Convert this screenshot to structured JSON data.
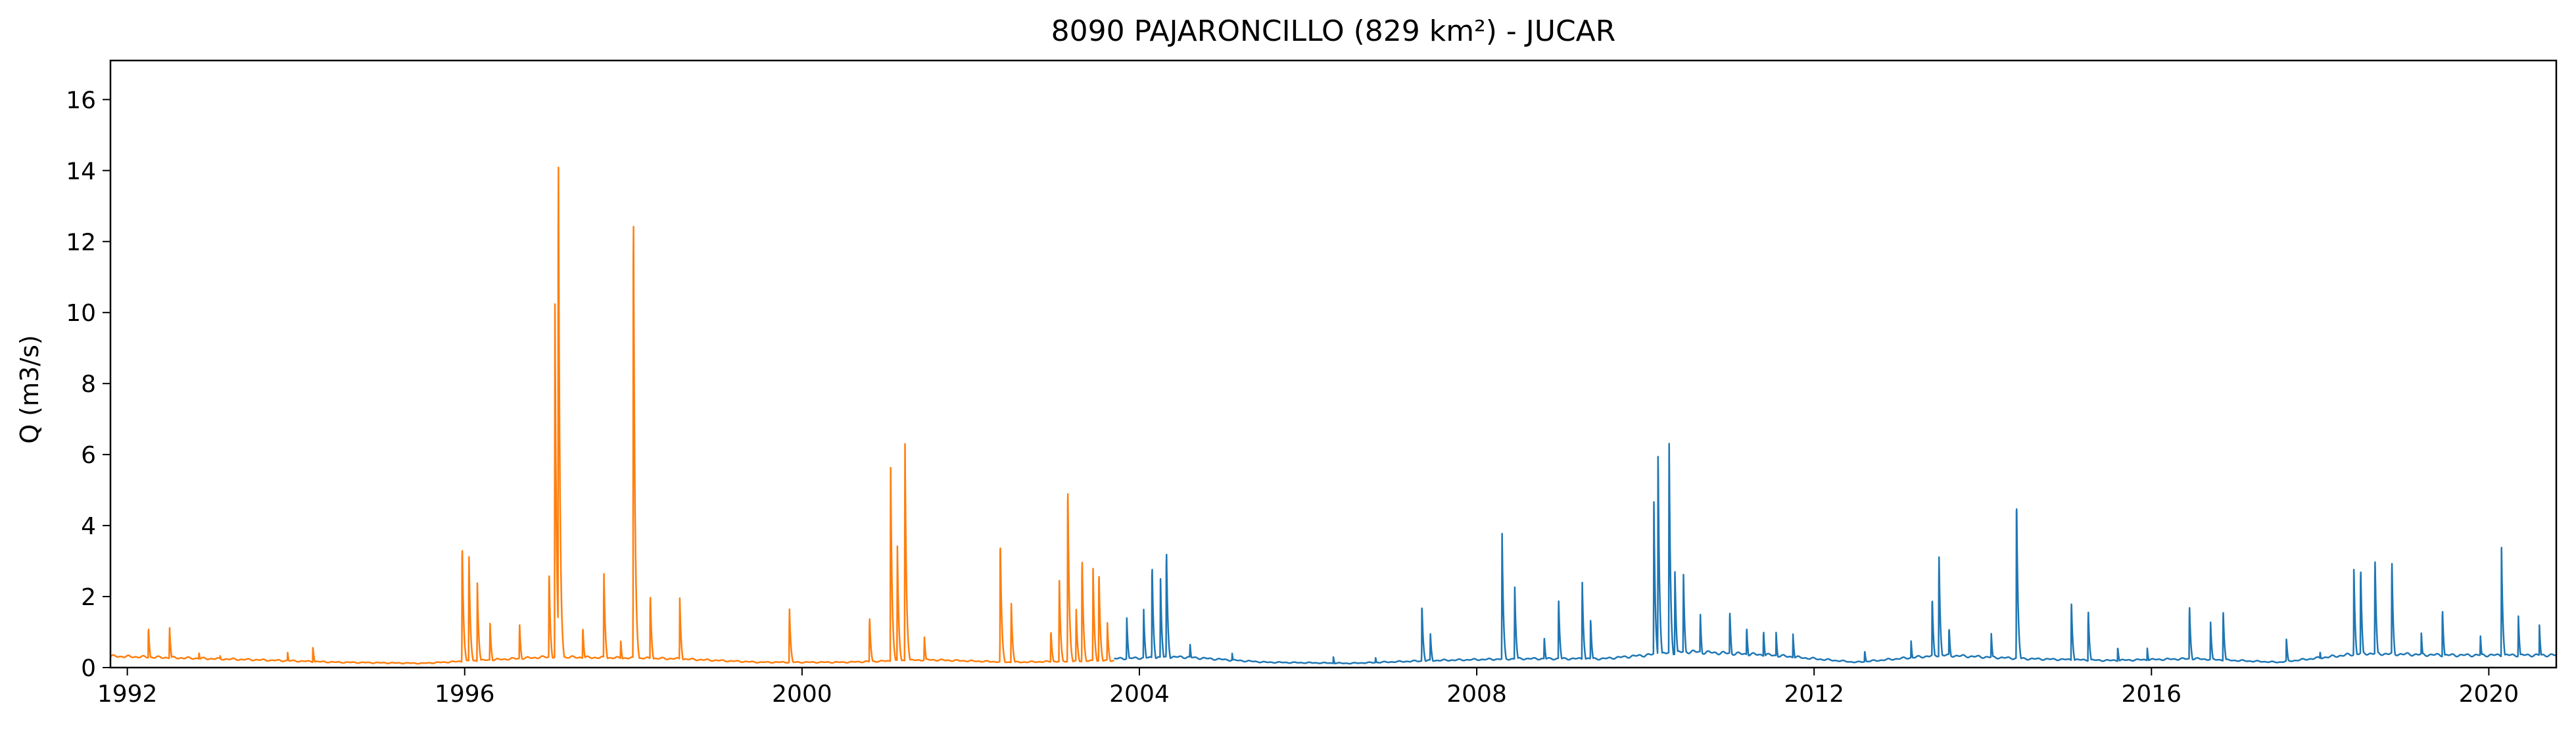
{
  "chart_data": {
    "type": "line",
    "title": "8090 PAJARONCILLO (829 km²) - JUCAR",
    "xlabel": "",
    "ylabel": "Q (m3/s)",
    "xlim": [
      1991.8,
      2020.8
    ],
    "ylim": [
      0,
      17.1
    ],
    "x_ticks": [
      1992,
      1996,
      2000,
      2004,
      2008,
      2012,
      2016,
      2020
    ],
    "x_tick_labels": [
      "1992",
      "1996",
      "2000",
      "2004",
      "2008",
      "2012",
      "2016",
      "2020"
    ],
    "y_ticks": [
      0,
      2,
      4,
      6,
      8,
      10,
      12,
      14,
      16
    ],
    "y_tick_labels": [
      "0",
      "2",
      "4",
      "6",
      "8",
      "10",
      "12",
      "14",
      "16"
    ],
    "grid": false,
    "legend": "none",
    "series": [
      {
        "color": "#ff7f0e",
        "x_range": [
          1991.8,
          2003.7
        ],
        "baseline_by_year": [
          [
            1991.8,
            0.32
          ],
          [
            1992.5,
            0.28
          ],
          [
            1993.5,
            0.22
          ],
          [
            1994.5,
            0.15
          ],
          [
            1995.5,
            0.12
          ],
          [
            1996.0,
            0.18
          ],
          [
            1997.0,
            0.3
          ],
          [
            1998.5,
            0.25
          ],
          [
            1999.5,
            0.15
          ],
          [
            2000.5,
            0.15
          ],
          [
            2001.5,
            0.22
          ],
          [
            2002.5,
            0.15
          ],
          [
            2003.7,
            0.2
          ]
        ],
        "peaks": [
          [
            1992.25,
            1.2
          ],
          [
            1992.5,
            1.2
          ],
          [
            1992.85,
            0.45
          ],
          [
            1993.1,
            0.35
          ],
          [
            1993.9,
            0.45
          ],
          [
            1994.2,
            0.6
          ],
          [
            1995.97,
            3.7
          ],
          [
            1996.05,
            3.4
          ],
          [
            1996.15,
            2.4
          ],
          [
            1996.3,
            1.3
          ],
          [
            1996.65,
            1.3
          ],
          [
            1997.0,
            2.9
          ],
          [
            1997.07,
            10.6
          ],
          [
            1997.11,
            15.5
          ],
          [
            1997.4,
            1.2
          ],
          [
            1997.65,
            2.85
          ],
          [
            1997.85,
            0.8
          ],
          [
            1998.0,
            13.9
          ],
          [
            1998.2,
            2.2
          ],
          [
            1998.55,
            2.0
          ],
          [
            1999.85,
            1.75
          ],
          [
            2000.8,
            1.5
          ],
          [
            2001.05,
            5.95
          ],
          [
            2001.13,
            3.5
          ],
          [
            2001.22,
            6.6
          ],
          [
            2001.45,
            0.9
          ],
          [
            2002.35,
            3.8
          ],
          [
            2002.48,
            1.9
          ],
          [
            2002.95,
            1.1
          ],
          [
            2003.05,
            2.55
          ],
          [
            2003.15,
            5.5
          ],
          [
            2003.25,
            1.7
          ],
          [
            2003.32,
            3.3
          ],
          [
            2003.45,
            2.9
          ],
          [
            2003.52,
            2.85
          ],
          [
            2003.62,
            1.3
          ]
        ]
      },
      {
        "color": "#1f77b4",
        "x_range": [
          2003.7,
          2020.8
        ],
        "baseline_by_year": [
          [
            2003.7,
            0.25
          ],
          [
            2004.5,
            0.3
          ],
          [
            2005.5,
            0.15
          ],
          [
            2006.5,
            0.12
          ],
          [
            2007.5,
            0.2
          ],
          [
            2008.5,
            0.25
          ],
          [
            2009.5,
            0.25
          ],
          [
            2010.5,
            0.45
          ],
          [
            2011.5,
            0.35
          ],
          [
            2012.5,
            0.15
          ],
          [
            2013.5,
            0.35
          ],
          [
            2014.5,
            0.25
          ],
          [
            2015.5,
            0.2
          ],
          [
            2016.5,
            0.25
          ],
          [
            2017.5,
            0.15
          ],
          [
            2018.5,
            0.4
          ],
          [
            2019.5,
            0.35
          ],
          [
            2020.8,
            0.35
          ]
        ],
        "peaks": [
          [
            2003.85,
            1.45
          ],
          [
            2004.05,
            1.7
          ],
          [
            2004.15,
            3.1
          ],
          [
            2004.25,
            2.6
          ],
          [
            2004.32,
            3.55
          ],
          [
            2004.6,
            0.7
          ],
          [
            2005.1,
            0.4
          ],
          [
            2006.3,
            0.3
          ],
          [
            2006.8,
            0.3
          ],
          [
            2007.35,
            1.85
          ],
          [
            2007.45,
            1.0
          ],
          [
            2008.3,
            3.85
          ],
          [
            2008.45,
            2.4
          ],
          [
            2008.8,
            0.9
          ],
          [
            2008.97,
            2.05
          ],
          [
            2009.25,
            2.55
          ],
          [
            2009.35,
            1.4
          ],
          [
            2010.1,
            4.8
          ],
          [
            2010.15,
            6.2
          ],
          [
            2010.28,
            6.8
          ],
          [
            2010.35,
            2.8
          ],
          [
            2010.45,
            2.8
          ],
          [
            2010.65,
            1.6
          ],
          [
            2011.0,
            1.7
          ],
          [
            2011.2,
            1.2
          ],
          [
            2011.4,
            1.1
          ],
          [
            2011.55,
            1.0
          ],
          [
            2011.75,
            0.95
          ],
          [
            2012.6,
            0.5
          ],
          [
            2013.15,
            0.75
          ],
          [
            2013.4,
            2.1
          ],
          [
            2013.48,
            3.4
          ],
          [
            2013.6,
            1.2
          ],
          [
            2014.1,
            1.0
          ],
          [
            2014.4,
            5.05
          ],
          [
            2015.05,
            1.95
          ],
          [
            2015.25,
            1.7
          ],
          [
            2015.6,
            0.6
          ],
          [
            2015.95,
            0.55
          ],
          [
            2016.45,
            1.85
          ],
          [
            2016.7,
            1.35
          ],
          [
            2016.85,
            1.7
          ],
          [
            2017.6,
            0.85
          ],
          [
            2018.0,
            0.45
          ],
          [
            2018.4,
            2.9
          ],
          [
            2018.48,
            3.0
          ],
          [
            2018.65,
            3.3
          ],
          [
            2018.85,
            3.25
          ],
          [
            2019.2,
            1.0
          ],
          [
            2019.45,
            1.75
          ],
          [
            2019.9,
            0.95
          ],
          [
            2020.15,
            3.5
          ],
          [
            2020.35,
            1.5
          ],
          [
            2020.6,
            1.2
          ],
          [
            2020.82,
            16.3
          ],
          [
            2021.05,
            1.3
          ],
          [
            2021.22,
            9.2
          ],
          [
            2021.3,
            2.65
          ],
          [
            2021.38,
            2.3
          ],
          [
            2021.55,
            1.1
          ]
        ]
      }
    ]
  }
}
